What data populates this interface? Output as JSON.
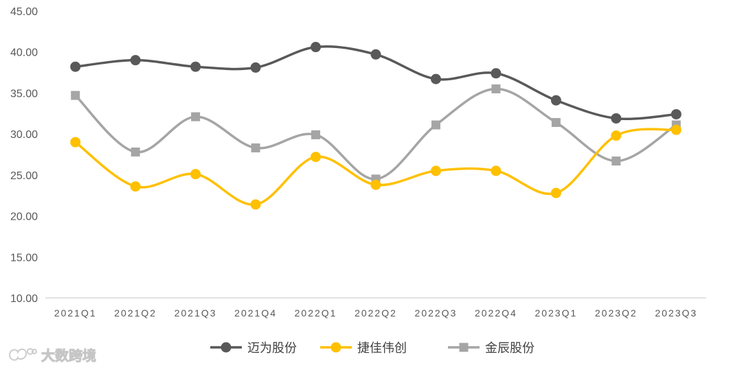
{
  "chart_data": {
    "type": "line",
    "categories": [
      "2021Q1",
      "2021Q2",
      "2021Q3",
      "2021Q4",
      "2022Q1",
      "2022Q2",
      "2022Q3",
      "2022Q4",
      "2023Q1",
      "2023Q2",
      "2023Q3"
    ],
    "series": [
      {
        "name": "迈为股份",
        "color": "#595959",
        "marker": "circle",
        "values": [
          38.2,
          39.0,
          38.2,
          38.1,
          40.6,
          39.7,
          36.7,
          37.4,
          34.1,
          31.9,
          32.4
        ]
      },
      {
        "name": "捷佳伟创",
        "color": "#FFC000",
        "marker": "circle",
        "values": [
          29.0,
          23.6,
          25.1,
          21.4,
          27.2,
          23.8,
          25.5,
          25.5,
          22.8,
          29.8,
          30.5
        ]
      },
      {
        "name": "金辰股份",
        "color": "#A5A5A5",
        "marker": "square",
        "values": [
          34.7,
          27.8,
          32.1,
          28.3,
          29.9,
          24.5,
          31.1,
          35.5,
          31.4,
          26.7,
          31.1
        ]
      }
    ],
    "ylim": [
      10,
      45
    ],
    "ytick_labels": [
      "10.00",
      "15.00",
      "20.00",
      "25.00",
      "30.00",
      "35.00",
      "40.00",
      "45.00"
    ],
    "smooth": true,
    "grid": false,
    "legend_position": "bottom-center",
    "title": "",
    "xlabel": "",
    "ylabel": ""
  },
  "watermark": {
    "text": "大数跨境",
    "icon": "brand-logo-icon"
  }
}
